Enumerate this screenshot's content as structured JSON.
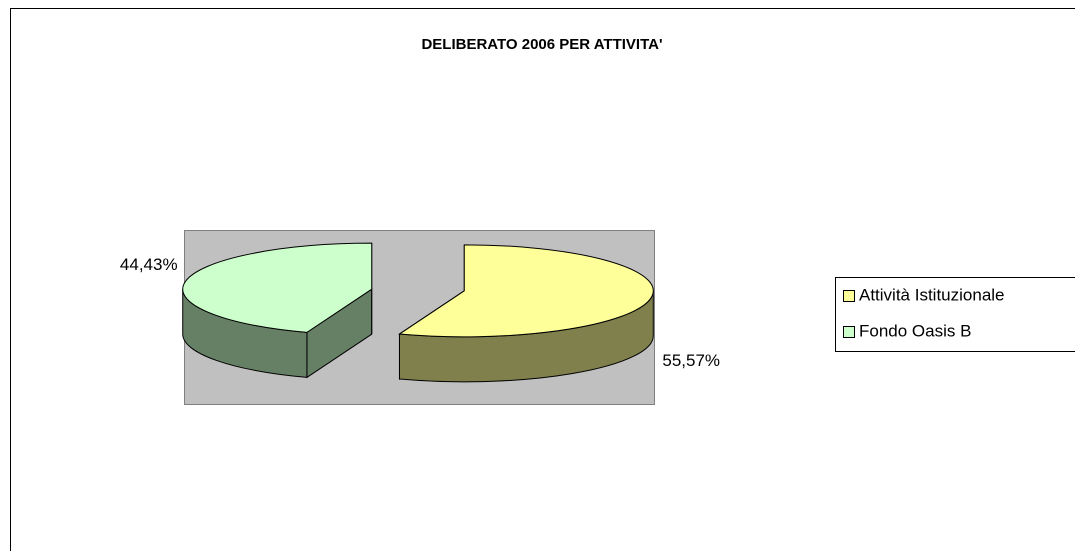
{
  "chart_data": {
    "type": "pie",
    "title": "DELIBERATO 2006 PER ATTIVITA'",
    "categories": [
      "Attività Istituzionale",
      "Fondo Oasis B"
    ],
    "values": [
      55.57,
      44.43
    ],
    "value_labels": [
      "55,57%",
      "44,43%"
    ],
    "colors": [
      "#ffff99",
      "#ccffcc"
    ],
    "legend": "right",
    "exploded": true,
    "three_d": true
  }
}
